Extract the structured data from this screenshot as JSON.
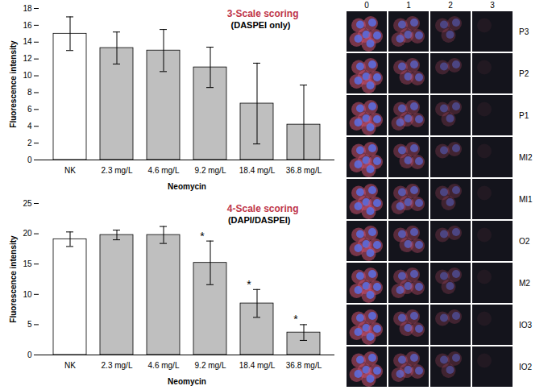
{
  "chart_data": [
    {
      "type": "bar",
      "title": "3-Scale scoring",
      "subtitle": "(DASPEI only)",
      "x_label": "Neomycin",
      "y_label": "Fluorescence intensity",
      "categories": [
        "NK",
        "2.3 mg/L",
        "4.6 mg/L",
        "9.2 mg/L",
        "18.4 mg/L",
        "36.8 mg/L"
      ],
      "values": [
        15.0,
        13.3,
        13.0,
        11.0,
        6.7,
        4.2
      ],
      "errors": [
        2.0,
        1.9,
        2.5,
        2.4,
        4.8,
        4.7
      ],
      "colors": [
        "#ffffff",
        "#bfbfbf",
        "#bfbfbf",
        "#bfbfbf",
        "#bfbfbf",
        "#bfbfbf"
      ],
      "ylim": [
        0,
        18
      ],
      "yticks": [
        0,
        2,
        4,
        6,
        8,
        10,
        12,
        14,
        16,
        18
      ],
      "grid": false
    },
    {
      "type": "bar",
      "title": "4-Scale scoring",
      "subtitle": "(DAPI/DASPEI)",
      "x_label": "Neomycin",
      "y_label": "Fluorescence intensity",
      "categories": [
        "NK",
        "2.3 mg/L",
        "4.6 mg/L",
        "9.2 mg/L",
        "18.4 mg/L",
        "36.8 mg/L"
      ],
      "values": [
        19.1,
        19.8,
        19.8,
        15.2,
        8.5,
        3.7
      ],
      "errors": [
        1.2,
        0.8,
        1.4,
        3.6,
        2.3,
        1.3
      ],
      "annotations": [
        null,
        null,
        null,
        "*",
        "*",
        "*"
      ],
      "colors": [
        "#ffffff",
        "#bfbfbf",
        "#bfbfbf",
        "#bfbfbf",
        "#bfbfbf",
        "#bfbfbf"
      ],
      "ylim": [
        0,
        25
      ],
      "yticks": [
        0,
        5,
        10,
        15,
        20,
        25
      ],
      "grid": false
    }
  ],
  "image_panel": {
    "columns": [
      "0",
      "1",
      "2",
      "3"
    ],
    "rows": [
      "P3",
      "P2",
      "P1",
      "MI2",
      "MI1",
      "O2",
      "M2",
      "IO3",
      "IO2"
    ]
  }
}
